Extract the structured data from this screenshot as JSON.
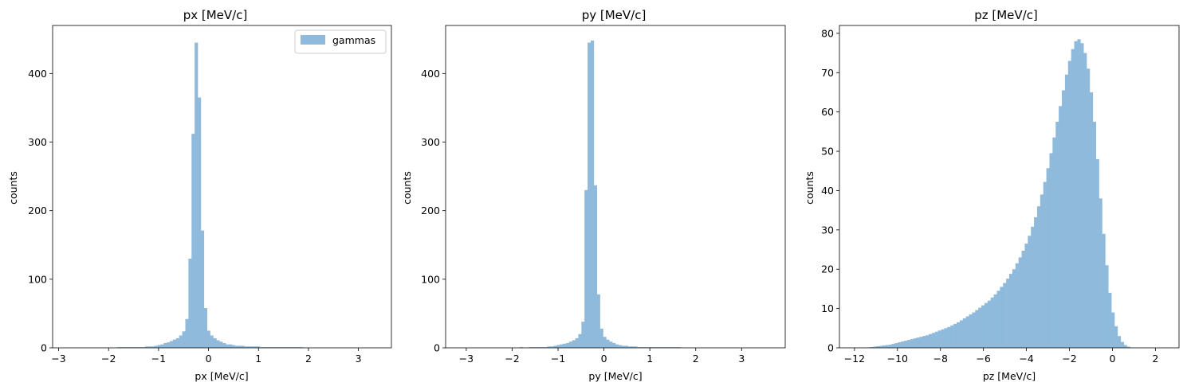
{
  "colors": {
    "bar": "#8fbadb",
    "axis": "#000000",
    "background": "#ffffff"
  },
  "chart_data": [
    {
      "type": "bar",
      "title": "px [MeV/c]",
      "xlabel": "px [MeV/c]",
      "ylabel": "counts",
      "xlim": [
        -3.12,
        3.66
      ],
      "ylim": [
        0,
        470
      ],
      "xticks": [
        -3,
        -2,
        -1,
        0,
        1,
        2,
        3
      ],
      "xtick_labels": [
        "−3",
        "−2",
        "−1",
        "0",
        "1",
        "2",
        "3"
      ],
      "yticks": [
        0,
        100,
        200,
        300,
        400
      ],
      "ytick_labels": [
        "0",
        "100",
        "200",
        "300",
        "400"
      ],
      "legend": {
        "placement": "top-right",
        "entries": [
          "gammas"
        ]
      },
      "series": [
        {
          "name": "gammas",
          "bin_edges": [
            -2.82,
            3.38
          ],
          "values": [
            0,
            0,
            0,
            0,
            0,
            0,
            0,
            0,
            0,
            0,
            0,
            0,
            0,
            0,
            0,
            0,
            1,
            1,
            1,
            1,
            1,
            1,
            1,
            1,
            1,
            2,
            2,
            2,
            3,
            4,
            5,
            7,
            8,
            10,
            12,
            14,
            18,
            24,
            42,
            130,
            312,
            445,
            365,
            171,
            58,
            25,
            18,
            14,
            11,
            9,
            7,
            5,
            5,
            4,
            3,
            3,
            3,
            2,
            2,
            2,
            2,
            2,
            1,
            1,
            1,
            1,
            1,
            1,
            1,
            1,
            1,
            1,
            1,
            1,
            1,
            1,
            0,
            0,
            0,
            0,
            0,
            0,
            0,
            0,
            0,
            0,
            0,
            0,
            0,
            0,
            0,
            0,
            0,
            0,
            0,
            0,
            0,
            0,
            0,
            0
          ]
        }
      ]
    },
    {
      "type": "bar",
      "title": "py [MeV/c]",
      "xlabel": "py [MeV/c]",
      "ylabel": "counts",
      "xlim": [
        -3.45,
        3.95
      ],
      "ylim": [
        0,
        470
      ],
      "xticks": [
        -3,
        -2,
        -1,
        0,
        1,
        2,
        3
      ],
      "xtick_labels": [
        "−3",
        "−2",
        "−1",
        "0",
        "1",
        "2",
        "3"
      ],
      "yticks": [
        0,
        100,
        200,
        300,
        400
      ],
      "ytick_labels": [
        "0",
        "100",
        "200",
        "300",
        "400"
      ],
      "series": [
        {
          "bin_edges": [
            -3.12,
            3.62
          ],
          "values": [
            0,
            0,
            0,
            0,
            0,
            0,
            0,
            0,
            0,
            0,
            0,
            0,
            0,
            0,
            0,
            0,
            0,
            0,
            0,
            1,
            0,
            0,
            1,
            1,
            1,
            1,
            1,
            1,
            2,
            2,
            3,
            4,
            5,
            6,
            7,
            9,
            11,
            14,
            20,
            38,
            230,
            445,
            448,
            237,
            78,
            28,
            16,
            12,
            9,
            7,
            5,
            4,
            3,
            3,
            2,
            2,
            2,
            1,
            1,
            1,
            1,
            1,
            1,
            1,
            1,
            1,
            1,
            1,
            1,
            1,
            1,
            0,
            0,
            0,
            0,
            0,
            0,
            0,
            0,
            0,
            0,
            0,
            0,
            0,
            0,
            0,
            0,
            0,
            0,
            0,
            0,
            0,
            0,
            0,
            0,
            0,
            0,
            0,
            0,
            0
          ]
        }
      ]
    },
    {
      "type": "bar",
      "title": "pz [MeV/c]",
      "xlabel": "pz [MeV/c]",
      "ylabel": "counts",
      "xlim": [
        -12.7,
        3.1
      ],
      "ylim": [
        0,
        82
      ],
      "xticks": [
        -12,
        -10,
        -8,
        -6,
        -4,
        -2,
        0,
        2
      ],
      "xtick_labels": [
        "−12",
        "−10",
        "−8",
        "−6",
        "−4",
        "−2",
        "0",
        "2"
      ],
      "yticks": [
        0,
        10,
        20,
        30,
        40,
        50,
        60,
        70,
        80
      ],
      "ytick_labels": [
        "0",
        "10",
        "20",
        "30",
        "40",
        "50",
        "60",
        "70",
        "80"
      ],
      "series": [
        {
          "bin_edges": [
            -12.0,
            2.4
          ],
          "values": [
            0,
            0,
            0,
            0,
            0.1,
            0.2,
            0.3,
            0.4,
            0.5,
            0.6,
            0.7,
            0.8,
            1,
            1.2,
            1.4,
            1.6,
            1.8,
            2,
            2.2,
            2.4,
            2.6,
            2.8,
            3,
            3.2,
            3.5,
            3.8,
            4.1,
            4.4,
            4.7,
            5,
            5.3,
            5.7,
            6.1,
            6.5,
            7,
            7.5,
            8,
            8.5,
            9,
            9.6,
            10.2,
            10.8,
            11.4,
            12,
            12.8,
            13.6,
            14.5,
            15.5,
            16.5,
            17.6,
            18.8,
            20,
            21.5,
            23,
            24.7,
            26.5,
            28.5,
            30.8,
            33.2,
            36,
            39,
            42.2,
            45.7,
            49.5,
            53.5,
            57.5,
            61.5,
            65.5,
            69.5,
            73,
            76,
            78,
            78.5,
            77.5,
            75,
            71,
            65,
            57.5,
            48,
            38,
            29,
            21,
            14,
            9,
            5.5,
            3,
            1.5,
            0.7,
            0.3,
            0.1,
            0,
            0,
            0,
            0,
            0,
            0,
            0,
            0,
            0,
            0
          ]
        }
      ]
    }
  ]
}
